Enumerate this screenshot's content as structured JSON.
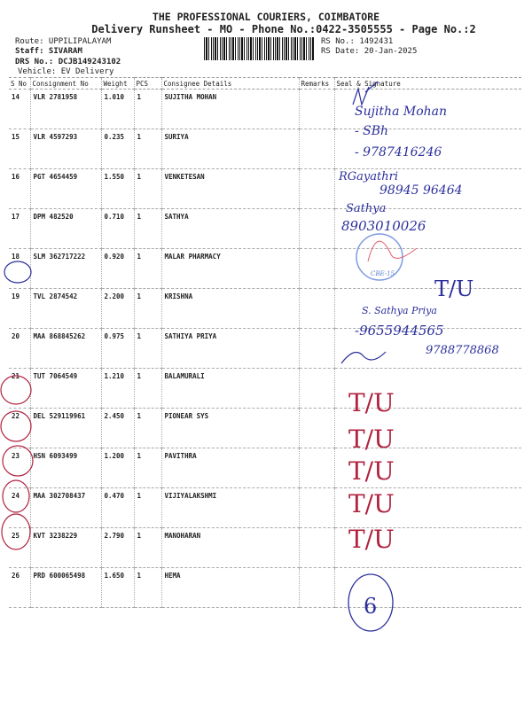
{
  "header": {
    "company": "THE PROFESSIONAL COURIERS, COIMBATORE",
    "subtitle": "Delivery Runsheet - MO - Phone No.:0422-3505555 - Page No.:2",
    "route": "Route: UPPILIPALAYAM",
    "staff": "Staff: SIVARAM",
    "drs_no": "DRS No.: DCJB149243102",
    "vehicle": "Vehicle: EV Delivery",
    "rs_no": "RS No.: 1492431",
    "rs_date": "RS Date: 20-Jan-2025"
  },
  "table": {
    "columns": [
      "S No",
      "Consignment No",
      "Weight",
      "PCS",
      "Consignee Details",
      "Remarks",
      "Seal & Signature"
    ],
    "rows": [
      {
        "sno": "14",
        "cn": "VLR 2781958",
        "weight": "1.010",
        "pcs": "1",
        "consignee": "SUJITHA MOHAN"
      },
      {
        "sno": "15",
        "cn": "VLR 4597293",
        "weight": "0.235",
        "pcs": "1",
        "consignee": "SURIYA"
      },
      {
        "sno": "16",
        "cn": "PGT 4654459",
        "weight": "1.550",
        "pcs": "1",
        "consignee": "VENKETESAN"
      },
      {
        "sno": "17",
        "cn": "DPM 482520",
        "weight": "0.710",
        "pcs": "1",
        "consignee": "SATHYA"
      },
      {
        "sno": "18",
        "cn": "SLM 362717222",
        "weight": "0.920",
        "pcs": "1",
        "consignee": "MALAR PHARMACY"
      },
      {
        "sno": "19",
        "cn": "TVL 2874542",
        "weight": "2.200",
        "pcs": "1",
        "consignee": "KRISHNA"
      },
      {
        "sno": "20",
        "cn": "MAA 868845262",
        "weight": "0.975",
        "pcs": "1",
        "consignee": "SATHIYA PRIYA"
      },
      {
        "sno": "21",
        "cn": "TUT 7064549",
        "weight": "1.210",
        "pcs": "1",
        "consignee": "BALAMURALI"
      },
      {
        "sno": "22",
        "cn": "DEL 529119961",
        "weight": "2.450",
        "pcs": "1",
        "consignee": "PIONEAR SYS"
      },
      {
        "sno": "23",
        "cn": "HSN 6093499",
        "weight": "1.200",
        "pcs": "1",
        "consignee": "PAVITHRA"
      },
      {
        "sno": "24",
        "cn": "MAA 302708437",
        "weight": "0.470",
        "pcs": "1",
        "consignee": "VIJIYALAKSHMI"
      },
      {
        "sno": "25",
        "cn": "KVT 3238229",
        "weight": "2.790",
        "pcs": "1",
        "consignee": "MANOHARAN"
      },
      {
        "sno": "26",
        "cn": "PRD 600065498",
        "weight": "1.650",
        "pcs": "1",
        "consignee": "HEMA"
      }
    ]
  },
  "handwriting": {
    "h1": "Sujitha Mohan",
    "h2": "- SBh",
    "h3": "- 9787416246",
    "h4": "RGayathri",
    "h5": "98945 96464",
    "h6": "Sathya",
    "h7": "8903010026",
    "stamp": "CBE-15",
    "tu": "T/U",
    "h8": "S. Sathya Priya",
    "h9": "-9655944565",
    "h10": "9788778868",
    "total": "6"
  },
  "colors": {
    "ink_blue": "#2b2f9c",
    "ink_red": "#b0223f"
  }
}
